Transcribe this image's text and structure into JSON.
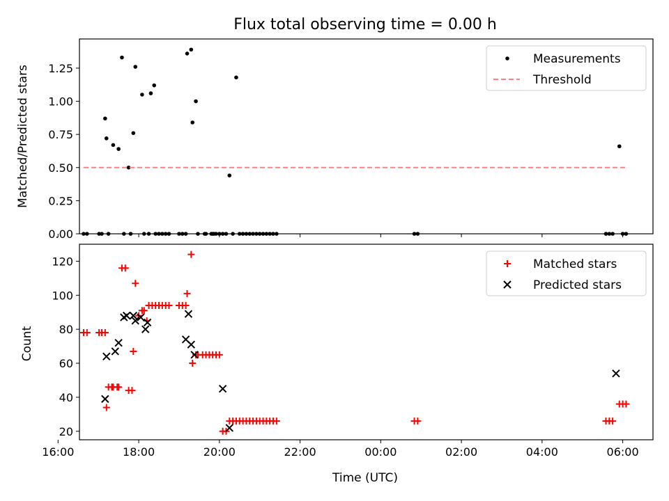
{
  "figure_title": "Flux total observing time = 0.00 h",
  "chart_data": [
    {
      "type": "scatter",
      "title": "Flux total observing time = 0.00 h",
      "ylabel": "Matched/Predicted stars",
      "xlabel": "",
      "x_axis_type": "time",
      "xlim": [
        "16:32",
        "06:45 (next day)"
      ],
      "ylim": [
        0,
        1.47
      ],
      "x_ticks": [
        "16:00",
        "18:00",
        "20:00",
        "22:00",
        "00:00",
        "02:00",
        "04:00",
        "06:00"
      ],
      "x_tick_labels_shown": false,
      "y_ticks": [
        "0.00",
        "0.25",
        "0.50",
        "0.75",
        "1.00",
        "1.25"
      ],
      "grid": false,
      "legend_position": "upper right",
      "legend": [
        "Measurements",
        "Threshold"
      ],
      "series": [
        {
          "name": "Measurements",
          "marker": "dot",
          "color": "#000000",
          "x": [
            "16:38",
            "16:43",
            "17:01",
            "17:05",
            "17:10",
            "17:12",
            "17:15",
            "17:22",
            "17:30",
            "17:35",
            "17:38",
            "17:45",
            "17:48",
            "17:52",
            "17:55",
            "18:05",
            "18:08",
            "18:15",
            "18:18",
            "18:23",
            "18:25",
            "18:30",
            "18:35",
            "18:40",
            "18:45",
            "19:00",
            "19:05",
            "19:10",
            "19:12",
            "19:18",
            "19:20",
            "19:25",
            "19:28",
            "19:38",
            "19:40",
            "19:48",
            "19:50",
            "19:52",
            "19:55",
            "20:00",
            "20:05",
            "20:10",
            "20:15",
            "20:20",
            "20:25",
            "20:30",
            "20:35",
            "20:40",
            "20:45",
            "20:50",
            "20:55",
            "21:00",
            "21:05",
            "21:10",
            "21:15",
            "21:20",
            "21:25",
            "00:50",
            "00:55",
            "05:35",
            "05:40",
            "05:45",
            "05:55",
            "06:00",
            "06:05"
          ],
          "y": [
            0.0,
            0.0,
            0.0,
            0.0,
            0.87,
            0.72,
            0.0,
            0.67,
            0.64,
            1.33,
            0.0,
            0.5,
            0.0,
            0.76,
            1.26,
            1.05,
            0.0,
            0.0,
            1.06,
            1.12,
            0.0,
            0.0,
            0.0,
            0.0,
            0.0,
            0.0,
            0.0,
            0.0,
            1.36,
            1.39,
            0.84,
            1.0,
            0.0,
            0.0,
            0.0,
            0.0,
            0.0,
            0.0,
            0.0,
            0.0,
            0.0,
            0.0,
            0.44,
            0.0,
            1.18,
            0.0,
            0.0,
            0.0,
            0.0,
            0.0,
            0.0,
            0.0,
            0.0,
            0.0,
            0.0,
            0.0,
            0.0,
            0.0,
            0.0,
            0.0,
            0.0,
            0.0,
            0.66,
            0.0,
            0.0
          ]
        },
        {
          "name": "Threshold",
          "style": "dashed",
          "color": "#ff8080",
          "x": [
            "16:38",
            "06:05"
          ],
          "y": [
            0.5,
            0.5
          ]
        }
      ]
    },
    {
      "type": "scatter",
      "title": "",
      "ylabel": "Count",
      "xlabel": "Time (UTC)",
      "x_axis_type": "time",
      "xlim": [
        "16:32",
        "06:45 (next day)"
      ],
      "ylim": [
        15,
        130
      ],
      "x_ticks": [
        "16:00",
        "18:00",
        "20:00",
        "22:00",
        "00:00",
        "02:00",
        "04:00",
        "06:00"
      ],
      "y_ticks": [
        "20",
        "40",
        "60",
        "80",
        "100",
        "120"
      ],
      "grid": false,
      "legend_position": "upper right",
      "legend": [
        "Matched stars",
        "Predicted stars"
      ],
      "series": [
        {
          "name": "Matched stars",
          "marker": "plus",
          "color": "#ff0000",
          "x": [
            "16:38",
            "16:43",
            "17:01",
            "17:05",
            "17:10",
            "17:12",
            "17:15",
            "17:20",
            "17:22",
            "17:28",
            "17:30",
            "17:35",
            "17:40",
            "17:45",
            "17:50",
            "17:52",
            "17:55",
            "18:00",
            "18:05",
            "18:08",
            "18:12",
            "18:15",
            "18:20",
            "18:25",
            "18:30",
            "18:35",
            "18:40",
            "18:45",
            "19:00",
            "19:05",
            "19:10",
            "19:12",
            "19:18",
            "19:20",
            "19:25",
            "19:28",
            "19:35",
            "19:40",
            "19:45",
            "19:50",
            "19:55",
            "20:00",
            "20:05",
            "20:10",
            "20:15",
            "20:20",
            "20:25",
            "20:30",
            "20:35",
            "20:40",
            "20:45",
            "20:50",
            "20:55",
            "21:00",
            "21:05",
            "21:10",
            "21:15",
            "21:20",
            "21:25",
            "00:50",
            "00:55",
            "05:35",
            "05:40",
            "05:45",
            "05:55",
            "06:00",
            "06:05"
          ],
          "y": [
            78,
            78,
            78,
            78,
            78,
            34,
            46,
            46,
            46,
            46,
            46,
            116,
            116,
            44,
            44,
            67,
            107,
            88,
            91,
            91,
            85,
            94,
            94,
            94,
            94,
            94,
            94,
            94,
            94,
            94,
            94,
            101,
            124,
            60,
            65,
            65,
            65,
            65,
            65,
            65,
            65,
            65,
            20,
            20,
            26,
            26,
            26,
            26,
            26,
            26,
            26,
            26,
            26,
            26,
            26,
            26,
            26,
            26,
            26,
            26,
            26,
            26,
            26,
            26,
            36,
            36,
            36
          ]
        },
        {
          "name": "Predicted stars",
          "marker": "x",
          "color": "#000000",
          "x": [
            "17:10",
            "17:12",
            "17:25",
            "17:30",
            "17:38",
            "17:42",
            "17:52",
            "17:55",
            "18:03",
            "18:10",
            "18:13",
            "19:10",
            "19:14",
            "19:18",
            "19:23",
            "20:05",
            "20:15",
            "05:50"
          ],
          "y": [
            39,
            64,
            67,
            72,
            87,
            88,
            88,
            85,
            87,
            80,
            84,
            74,
            89,
            71,
            65,
            45,
            22,
            54
          ]
        }
      ]
    }
  ]
}
